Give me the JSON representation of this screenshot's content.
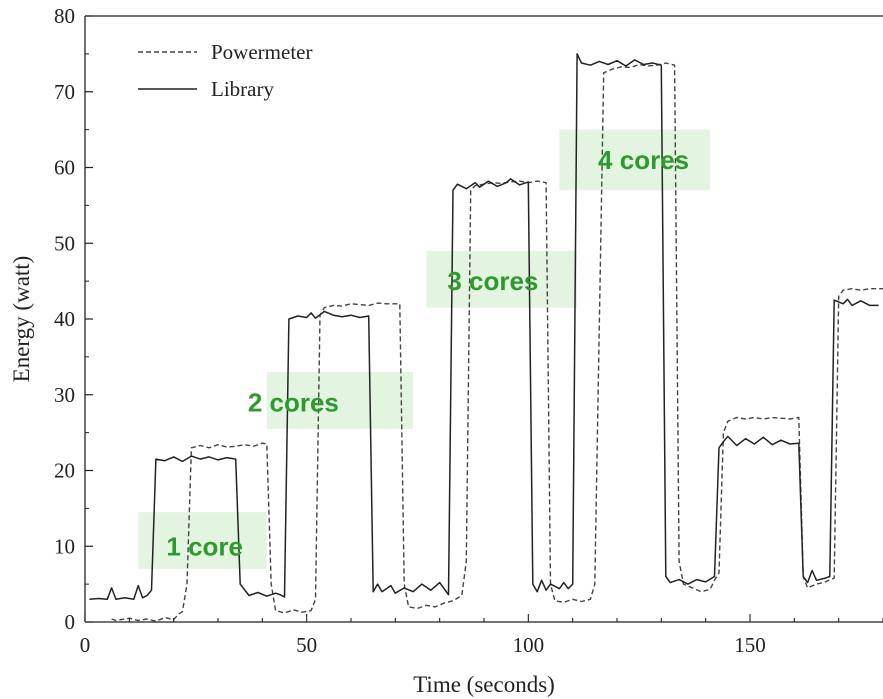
{
  "chart_data": {
    "type": "line",
    "title": "",
    "xlabel": "Time (seconds)",
    "ylabel": "Energy (watt)",
    "xlim": [
      0,
      180
    ],
    "ylim": [
      0,
      80
    ],
    "xticks": [
      0,
      50,
      100,
      150
    ],
    "yticks": [
      0,
      10,
      20,
      30,
      40,
      50,
      60,
      70,
      80
    ],
    "grid": false,
    "legend": "top-left",
    "series": [
      {
        "name": "Powermeter",
        "style": "dashed",
        "color": "#444444",
        "points": [
          [
            6,
            0.4
          ],
          [
            7,
            0.2
          ],
          [
            10,
            0.5
          ],
          [
            12,
            0.2
          ],
          [
            14,
            0.4
          ],
          [
            16,
            0.1
          ],
          [
            18,
            0.6
          ],
          [
            20,
            0.3
          ],
          [
            21,
            1.0
          ],
          [
            22,
            1.4
          ],
          [
            23,
            5.0
          ],
          [
            24,
            23.0
          ],
          [
            26,
            23.3
          ],
          [
            28,
            23.0
          ],
          [
            30,
            23.4
          ],
          [
            32,
            23.1
          ],
          [
            34,
            23.2
          ],
          [
            36,
            23.4
          ],
          [
            38,
            23.2
          ],
          [
            40,
            23.6
          ],
          [
            41,
            23.5
          ],
          [
            42,
            5.0
          ],
          [
            43,
            1.5
          ],
          [
            45,
            1.2
          ],
          [
            47,
            1.6
          ],
          [
            49,
            1.3
          ],
          [
            51,
            1.5
          ],
          [
            52,
            3.0
          ],
          [
            53,
            40.5
          ],
          [
            54,
            41.5
          ],
          [
            56,
            41.8
          ],
          [
            58,
            41.7
          ],
          [
            60,
            42.0
          ],
          [
            62,
            41.9
          ],
          [
            64,
            41.8
          ],
          [
            66,
            42.1
          ],
          [
            68,
            42.0
          ],
          [
            70,
            42.0
          ],
          [
            71,
            42.0
          ],
          [
            72,
            5.0
          ],
          [
            73,
            2.0
          ],
          [
            75,
            1.8
          ],
          [
            77,
            2.2
          ],
          [
            79,
            2.0
          ],
          [
            81,
            2.5
          ],
          [
            83,
            2.8
          ],
          [
            85,
            3.5
          ],
          [
            86,
            8.0
          ],
          [
            87,
            57.0
          ],
          [
            88,
            57.6
          ],
          [
            90,
            57.8
          ],
          [
            92,
            58.0
          ],
          [
            94,
            57.9
          ],
          [
            96,
            58.1
          ],
          [
            98,
            58.2
          ],
          [
            100,
            58.0
          ],
          [
            102,
            58.2
          ],
          [
            104,
            58.0
          ],
          [
            105,
            5.0
          ],
          [
            106,
            2.8
          ],
          [
            108,
            2.6
          ],
          [
            110,
            3.0
          ],
          [
            112,
            2.7
          ],
          [
            114,
            3.0
          ],
          [
            115,
            5.0
          ],
          [
            117,
            72.5
          ],
          [
            119,
            73.0
          ],
          [
            121,
            73.3
          ],
          [
            123,
            73.2
          ],
          [
            125,
            73.6
          ],
          [
            127,
            73.4
          ],
          [
            129,
            73.5
          ],
          [
            131,
            73.8
          ],
          [
            133,
            73.5
          ],
          [
            134,
            8.0
          ],
          [
            135,
            5.0
          ],
          [
            137,
            4.5
          ],
          [
            139,
            4.0
          ],
          [
            141,
            4.3
          ],
          [
            142,
            5.5
          ],
          [
            143,
            6.5
          ],
          [
            144,
            25.0
          ],
          [
            145,
            26.5
          ],
          [
            147,
            27.0
          ],
          [
            149,
            26.8
          ],
          [
            151,
            27.0
          ],
          [
            153,
            26.8
          ],
          [
            155,
            27.0
          ],
          [
            157,
            26.9
          ],
          [
            159,
            26.8
          ],
          [
            161,
            27.0
          ],
          [
            162,
            6.0
          ],
          [
            163,
            4.5
          ],
          [
            165,
            5.0
          ],
          [
            167,
            5.3
          ],
          [
            169,
            5.8
          ],
          [
            170,
            43.0
          ],
          [
            171,
            43.8
          ],
          [
            173,
            44.0
          ],
          [
            175,
            43.8
          ],
          [
            177,
            44.0
          ],
          [
            180,
            44.0
          ]
        ]
      },
      {
        "name": "Library",
        "style": "solid",
        "color": "#222222",
        "points": [
          [
            1,
            3.0
          ],
          [
            3,
            3.1
          ],
          [
            5,
            3.0
          ],
          [
            6,
            4.5
          ],
          [
            7,
            3.0
          ],
          [
            9,
            3.2
          ],
          [
            11,
            3.0
          ],
          [
            12,
            4.8
          ],
          [
            13,
            3.2
          ],
          [
            14,
            3.5
          ],
          [
            15,
            4.2
          ],
          [
            16,
            21.5
          ],
          [
            18,
            21.3
          ],
          [
            20,
            21.8
          ],
          [
            22,
            21.2
          ],
          [
            24,
            21.9
          ],
          [
            26,
            21.5
          ],
          [
            28,
            21.8
          ],
          [
            30,
            21.4
          ],
          [
            32,
            21.7
          ],
          [
            34,
            21.5
          ],
          [
            35,
            5.0
          ],
          [
            37,
            3.5
          ],
          [
            39,
            3.9
          ],
          [
            41,
            3.4
          ],
          [
            43,
            3.8
          ],
          [
            44,
            3.6
          ],
          [
            45,
            3.3
          ],
          [
            46,
            40.0
          ],
          [
            48,
            40.4
          ],
          [
            50,
            40.2
          ],
          [
            51,
            40.8
          ],
          [
            52,
            40.1
          ],
          [
            54,
            41.0
          ],
          [
            56,
            40.5
          ],
          [
            58,
            40.3
          ],
          [
            60,
            40.5
          ],
          [
            62,
            40.2
          ],
          [
            64,
            40.4
          ],
          [
            65,
            4.0
          ],
          [
            66,
            5.0
          ],
          [
            67,
            4.0
          ],
          [
            69,
            4.8
          ],
          [
            70,
            3.8
          ],
          [
            72,
            4.5
          ],
          [
            74,
            4.0
          ],
          [
            76,
            5.0
          ],
          [
            78,
            4.2
          ],
          [
            80,
            5.2
          ],
          [
            82,
            3.6
          ],
          [
            83,
            57.0
          ],
          [
            84,
            57.8
          ],
          [
            86,
            57.2
          ],
          [
            88,
            58.0
          ],
          [
            89,
            57.4
          ],
          [
            91,
            58.2
          ],
          [
            93,
            57.5
          ],
          [
            95,
            58.0
          ],
          [
            96,
            58.5
          ],
          [
            98,
            57.7
          ],
          [
            100,
            58.1
          ],
          [
            101,
            5.0
          ],
          [
            102,
            4.0
          ],
          [
            103,
            5.5
          ],
          [
            104,
            4.2
          ],
          [
            105,
            5.0
          ],
          [
            107,
            4.4
          ],
          [
            108,
            5.2
          ],
          [
            109,
            4.4
          ],
          [
            110,
            5.0
          ],
          [
            111,
            75.0
          ],
          [
            112,
            73.8
          ],
          [
            114,
            73.5
          ],
          [
            116,
            74.0
          ],
          [
            118,
            73.6
          ],
          [
            120,
            74.1
          ],
          [
            122,
            73.4
          ],
          [
            124,
            74.2
          ],
          [
            126,
            73.6
          ],
          [
            128,
            73.8
          ],
          [
            130,
            73.5
          ],
          [
            131,
            6.0
          ],
          [
            132,
            5.2
          ],
          [
            134,
            5.6
          ],
          [
            136,
            5.0
          ],
          [
            138,
            5.6
          ],
          [
            140,
            5.3
          ],
          [
            142,
            6.0
          ],
          [
            143,
            23.0
          ],
          [
            144,
            23.8
          ],
          [
            145,
            24.5
          ],
          [
            147,
            23.3
          ],
          [
            149,
            24.2
          ],
          [
            151,
            23.5
          ],
          [
            153,
            24.4
          ],
          [
            155,
            23.4
          ],
          [
            157,
            24.0
          ],
          [
            159,
            23.5
          ],
          [
            161,
            23.6
          ],
          [
            162,
            6.0
          ],
          [
            163,
            5.2
          ],
          [
            164,
            6.8
          ],
          [
            165,
            5.5
          ],
          [
            167,
            5.8
          ],
          [
            168,
            6.0
          ],
          [
            169,
            42.5
          ],
          [
            171,
            42.0
          ],
          [
            172,
            42.6
          ],
          [
            173,
            41.8
          ],
          [
            175,
            42.4
          ],
          [
            177,
            41.8
          ],
          [
            179,
            41.8
          ]
        ]
      }
    ],
    "annotations": [
      {
        "text": "1 core",
        "x": 27,
        "y": 10,
        "box": {
          "x0": 12,
          "x1": 41,
          "y0": 7.0,
          "y1": 14.5
        }
      },
      {
        "text": "2 cores",
        "x": 47,
        "y": 29,
        "box": {
          "x0": 41,
          "x1": 74,
          "y0": 25.5,
          "y1": 33.0
        }
      },
      {
        "text": "3 cores",
        "x": 92,
        "y": 45,
        "box": {
          "x0": 77,
          "x1": 111,
          "y0": 41.5,
          "y1": 49.0
        }
      },
      {
        "text": "4 cores",
        "x": 126,
        "y": 61,
        "box": {
          "x0": 107,
          "x1": 141,
          "y0": 57.0,
          "y1": 65.0
        }
      }
    ],
    "annotation_fill": "#e3f5e1",
    "annotation_color": "#2e9a2e"
  }
}
